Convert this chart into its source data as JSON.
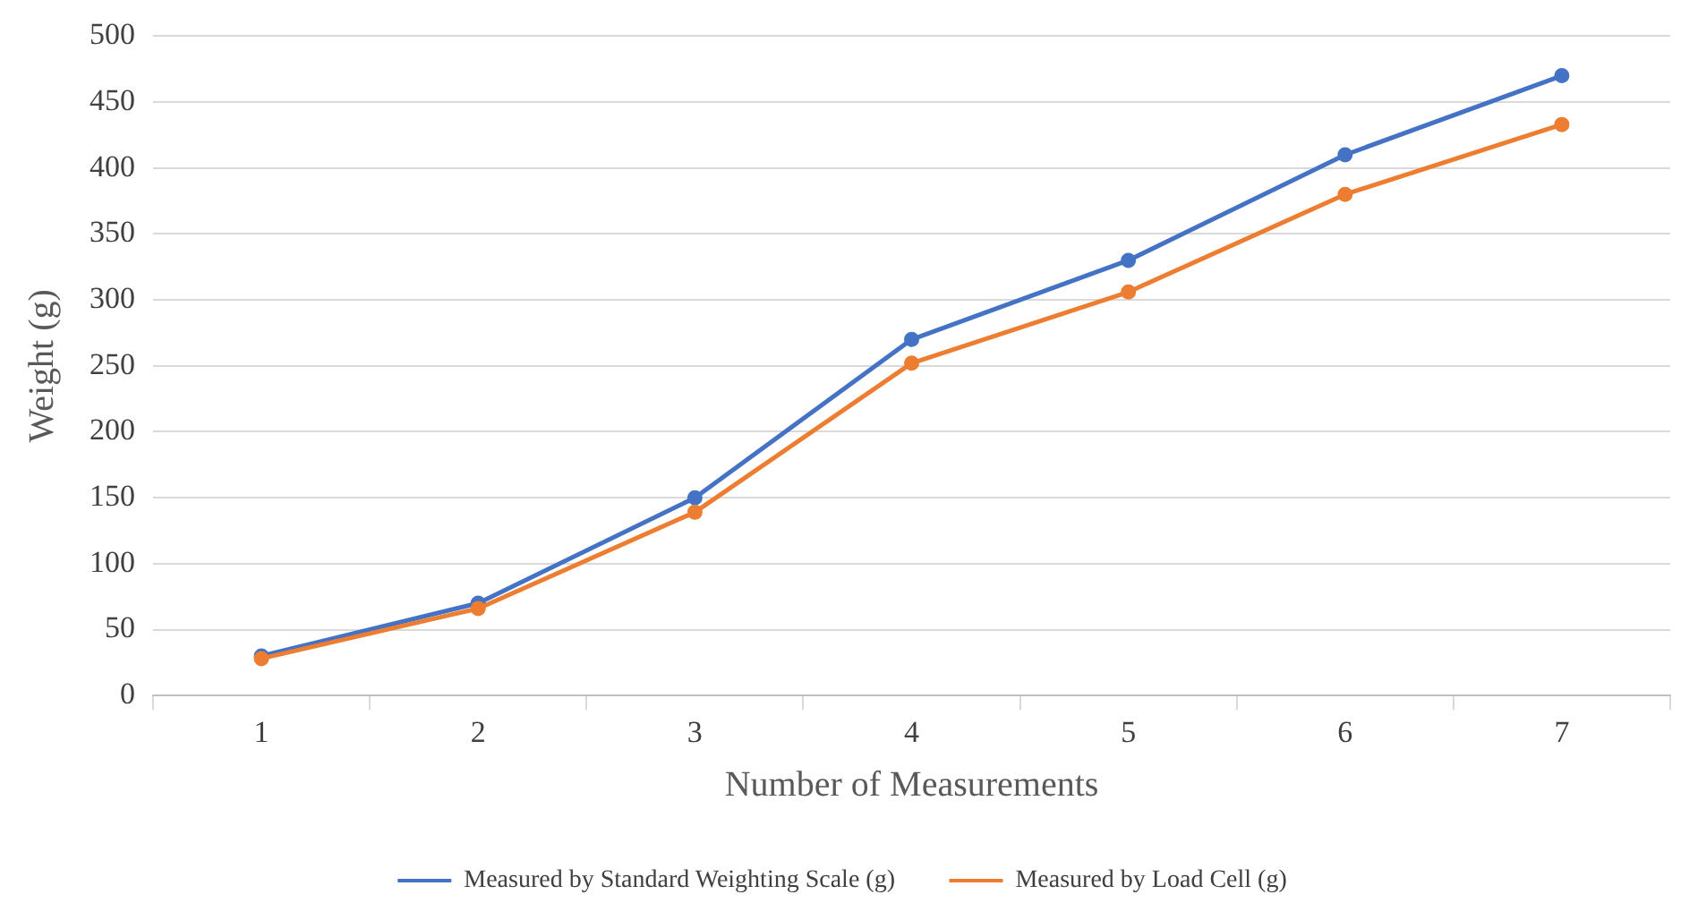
{
  "chart_data": {
    "type": "line",
    "xlabel": "Number of Measurements",
    "ylabel": "Weight (g)",
    "categories": [
      "1",
      "2",
      "3",
      "4",
      "5",
      "6",
      "7"
    ],
    "series": [
      {
        "name": "Measured by Standard Weighting Scale (g)",
        "color": "#4472c4",
        "values": [
          30,
          70,
          150,
          270,
          330,
          410,
          470
        ]
      },
      {
        "name": "Measured by Load Cell (g)",
        "color": "#ed7d31",
        "values": [
          28,
          66,
          139,
          252,
          306,
          380,
          433
        ]
      }
    ],
    "ylim": [
      0,
      500
    ],
    "yticks": [
      0,
      50,
      100,
      150,
      200,
      250,
      300,
      350,
      400,
      450,
      500
    ],
    "grid": "y",
    "legend": "bottom",
    "marker": "circle",
    "line_style": "solid"
  }
}
